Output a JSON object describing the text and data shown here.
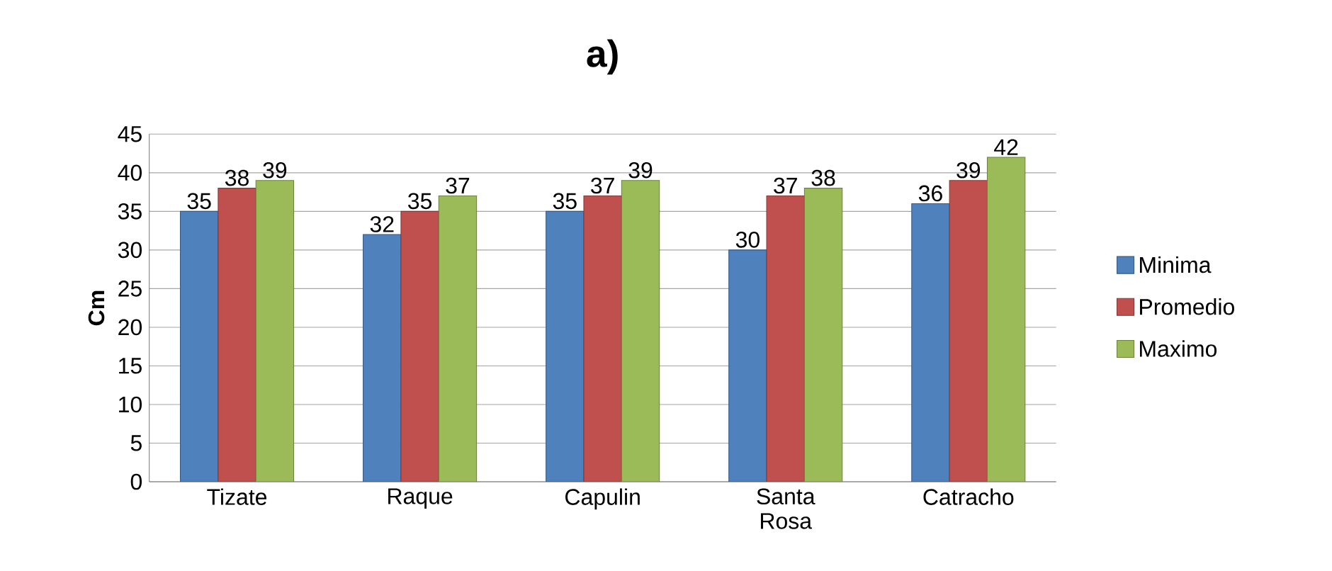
{
  "chart_data": {
    "type": "bar",
    "title": "a)",
    "ylabel": "Cm",
    "categories": [
      "Tizate",
      "Raque",
      "Capulin",
      "Santa Rosa",
      "Catracho"
    ],
    "series": [
      {
        "name": "Minima",
        "color": "#4f81bd",
        "values": [
          35,
          32,
          35,
          30,
          36
        ]
      },
      {
        "name": "Promedio",
        "color": "#c0504d",
        "values": [
          38,
          35,
          37,
          37,
          39
        ]
      },
      {
        "name": "Maximo",
        "color": "#9bbb59",
        "values": [
          39,
          37,
          39,
          38,
          42
        ]
      }
    ],
    "ylim": [
      0,
      45
    ],
    "yticks": [
      0,
      5,
      10,
      15,
      20,
      25,
      30,
      35,
      40,
      45
    ],
    "grid": "y",
    "legend": "right",
    "data_labels": true
  }
}
